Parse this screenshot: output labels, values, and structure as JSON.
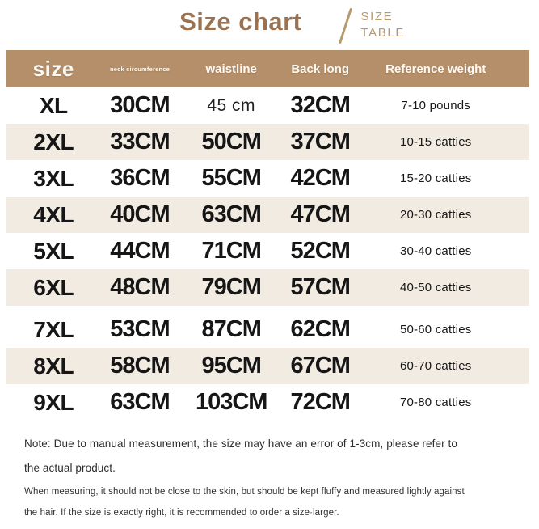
{
  "header": {
    "title": "Size chart",
    "subtitle_line1": "SIZE",
    "subtitle_line2": "TABLE"
  },
  "chart_data": {
    "type": "table",
    "title": "Size chart",
    "columns": [
      "size",
      "neck circumference",
      "waistline",
      "Back long",
      "Reference weight"
    ],
    "rows": [
      [
        "XL",
        "30CM",
        "45 cm",
        "32CM",
        "7-10 pounds"
      ],
      [
        "2XL",
        "33CM",
        "50CM",
        "37CM",
        "10-15 catties"
      ],
      [
        "3XL",
        "36CM",
        "55CM",
        "42CM",
        "15-20 catties"
      ],
      [
        "4XL",
        "40CM",
        "63CM",
        "47CM",
        "20-30 catties"
      ],
      [
        "5XL",
        "44CM",
        "71CM",
        "52CM",
        "30-40 catties"
      ],
      [
        "6XL",
        "48CM",
        "79CM",
        "57CM",
        "40-50 catties"
      ],
      [
        "7XL",
        "53CM",
        "87CM",
        "62CM",
        "50-60 catties"
      ],
      [
        "8XL",
        "58CM",
        "95CM",
        "67CM",
        "60-70 catties"
      ],
      [
        "9XL",
        "63CM",
        "103CM",
        "72CM",
        "70-80 catties"
      ]
    ]
  },
  "notes": {
    "p1": "Note: Due to manual measurement, the size may have an error of 1-3cm, please refer to the actual product.",
    "p2": "When measuring, it should not be close to the skin, but should be kept fluffy and measured lightly against the hair. If the size is exactly right, it is recommended to order a size·larger."
  },
  "colors": {
    "accent_brown": "#9a7252",
    "subtitle_tan": "#b59a6e",
    "header_bg": "#b48f6a",
    "stripe_bg": "#f2ebe2",
    "text_dark": "#161616",
    "note_color": "#333333"
  }
}
